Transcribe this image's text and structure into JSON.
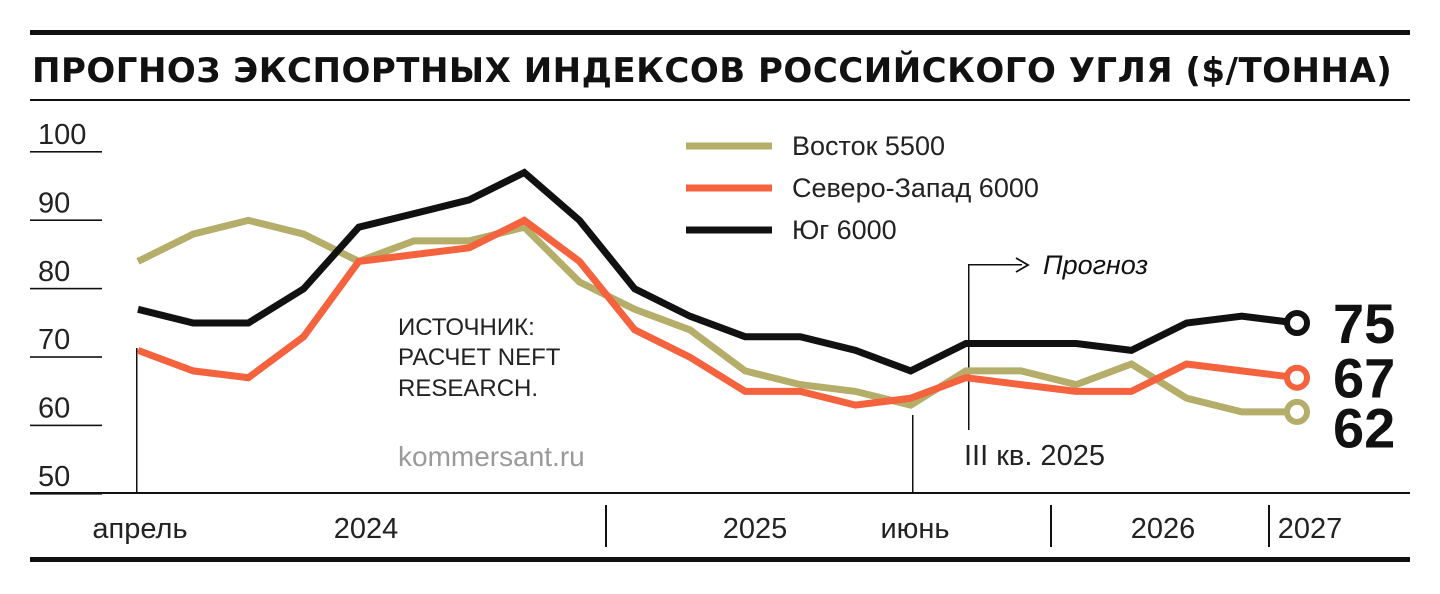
{
  "chart_data": {
    "type": "line",
    "title": "ПРОГНОЗ ЭКСПОРТНЫХ ИНДЕКСОВ РОССИЙСКОГО УГЛЯ ($/ТОННА)",
    "ylim": [
      50,
      100
    ],
    "y_ticks": [
      "100",
      "90",
      "80",
      "70",
      "60",
      "50"
    ],
    "x_labels": [
      "апрель",
      "2024",
      "2025",
      "июнь",
      "2026",
      "2027"
    ],
    "points_count": 22,
    "series": [
      {
        "name": "Восток 5500",
        "color": "#b5ad6a",
        "values": [
          84,
          88,
          90,
          88,
          84,
          87,
          87,
          89,
          81,
          77,
          74,
          68,
          66,
          65,
          63,
          68,
          68,
          66,
          69,
          64,
          62,
          62
        ],
        "end_label": "62"
      },
      {
        "name": "Северо-Запад 6000",
        "color": "#f4623e",
        "values": [
          71,
          68,
          67,
          73,
          84,
          85,
          86,
          90,
          84,
          74,
          70,
          65,
          65,
          63,
          64,
          67,
          66,
          65,
          65,
          69,
          68,
          67
        ],
        "end_label": "67"
      },
      {
        "name": "Юг 6000",
        "color": "#111111",
        "values": [
          77,
          75,
          75,
          80,
          89,
          91,
          93,
          97,
          90,
          80,
          76,
          73,
          73,
          71,
          68,
          72,
          72,
          72,
          71,
          75,
          76,
          75
        ],
        "end_label": "75"
      }
    ],
    "annotations": {
      "forecast_label": "Прогноз",
      "forecast_start": "III кв. 2025",
      "source": "ИСТОЧНИК: РАСЧЕТ NEFT RESEARCH.",
      "source_lines": [
        "ИСТОЧНИК:",
        "РАСЧЕТ NEFT",
        "RESEARCH."
      ],
      "site": "kommersant.ru"
    },
    "grid": false,
    "legend_position": "top-right"
  }
}
